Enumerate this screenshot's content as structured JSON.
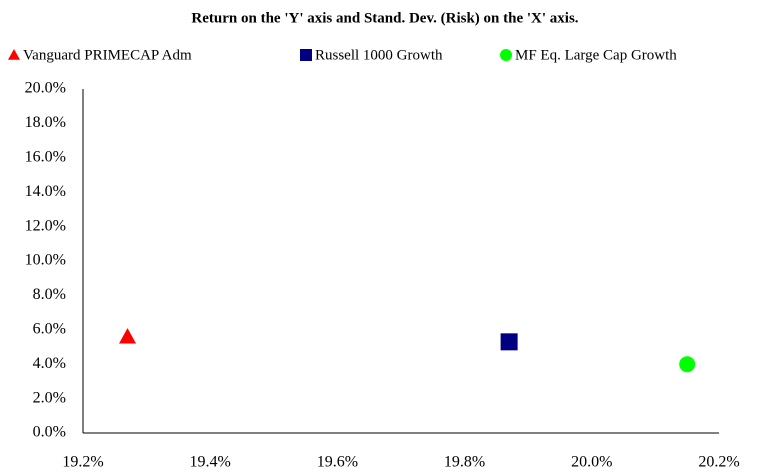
{
  "chart_data": {
    "type": "scatter",
    "title": "Return on the 'Y' axis and Stand. Dev. (Risk) on the 'X' axis.",
    "series": [
      {
        "name": "Vanguard PRIMECAP Adm",
        "color": "#ff0000",
        "marker": "triangle",
        "x": [
          19.27
        ],
        "values": [
          5.6
        ]
      },
      {
        "name": "Russell 1000 Growth",
        "color": "#000080",
        "marker": "square",
        "x": [
          19.87
        ],
        "values": [
          5.3
        ]
      },
      {
        "name": "MF  Eq. Large Cap Growth",
        "color": "#00ff00",
        "marker": "circle",
        "x": [
          20.15
        ],
        "values": [
          4.0
        ]
      }
    ],
    "xlim": [
      19.2,
      20.2
    ],
    "xticks": [
      {
        "value": 19.2,
        "label": "19.2%"
      },
      {
        "value": 19.4,
        "label": "19.4%"
      },
      {
        "value": 19.6,
        "label": "19.6%"
      },
      {
        "value": 19.8,
        "label": "19.8%"
      },
      {
        "value": 20.0,
        "label": "20.0%"
      },
      {
        "value": 20.2,
        "label": "20.2%"
      }
    ],
    "ylim": [
      0,
      20
    ],
    "yticks": [
      {
        "value": 0,
        "label": "0.0%"
      },
      {
        "value": 2,
        "label": "2.0%"
      },
      {
        "value": 4,
        "label": "4.0%"
      },
      {
        "value": 6,
        "label": "6.0%"
      },
      {
        "value": 8,
        "label": "8.0%"
      },
      {
        "value": 10,
        "label": "10.0%"
      },
      {
        "value": 12,
        "label": "12.0%"
      },
      {
        "value": 14,
        "label": "14.0%"
      },
      {
        "value": 16,
        "label": "16.0%"
      },
      {
        "value": 18,
        "label": "18.0%"
      },
      {
        "value": 20,
        "label": "20.0%"
      }
    ],
    "grid": false
  }
}
